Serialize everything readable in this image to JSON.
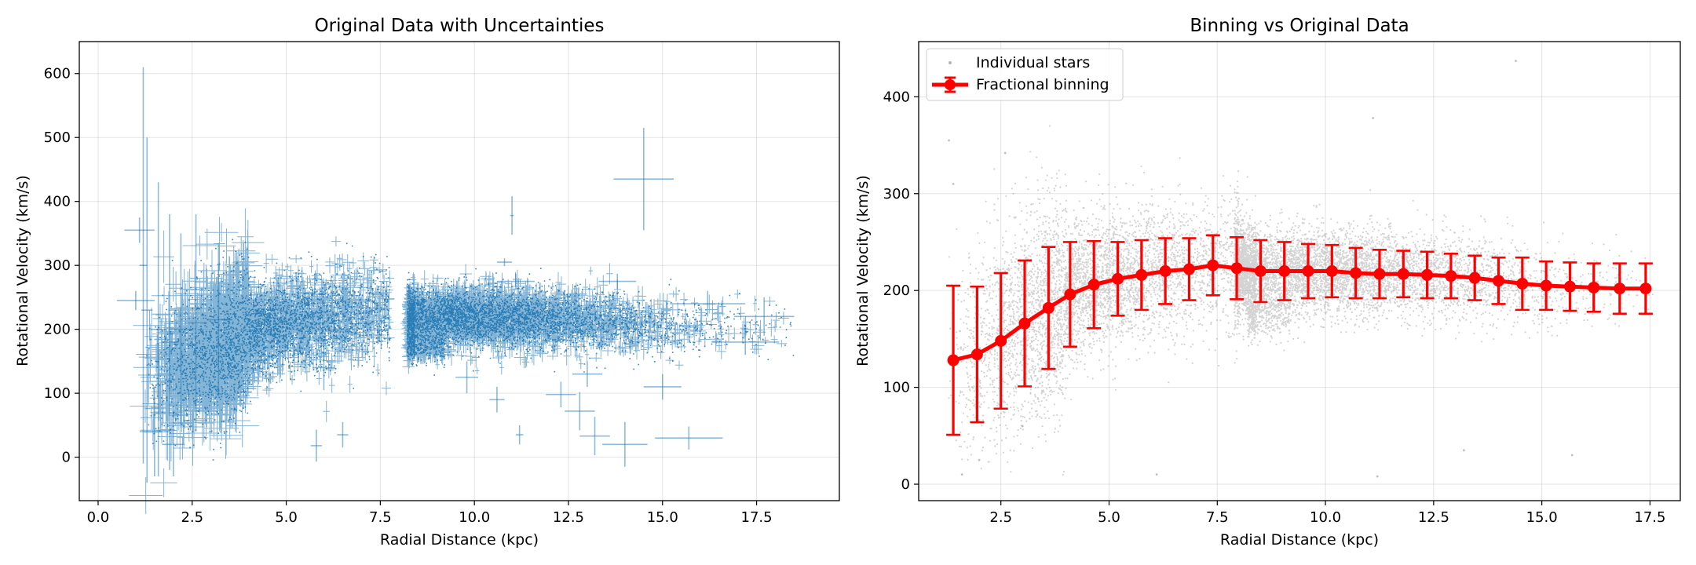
{
  "chart_data": [
    {
      "type": "scatter",
      "title": "Original Data with Uncertainties",
      "xlabel": "Radial Distance (kpc)",
      "ylabel": "Rotational Velocity (km/s)",
      "xlim": [
        -0.5,
        19.7
      ],
      "ylim": [
        -68,
        650
      ],
      "xticks": [
        0.0,
        2.5,
        5.0,
        7.5,
        10.0,
        12.5,
        15.0,
        17.5
      ],
      "xtick_labels": [
        "0.0",
        "2.5",
        "5.0",
        "7.5",
        "10.0",
        "12.5",
        "15.0",
        "17.5"
      ],
      "yticks": [
        0,
        100,
        200,
        300,
        400,
        500,
        600
      ],
      "ytick_labels": [
        "0",
        "100",
        "200",
        "300",
        "400",
        "500",
        "600"
      ],
      "grid": true,
      "color": "#1f77b4",
      "series": [
        {
          "style": "errorbar",
          "points": [
            {
              "x": 1.2,
              "y": 300,
              "xerr": 0.1,
              "yerr": 310
            },
            {
              "x": 1.3,
              "y": 230,
              "xerr": 0.15,
              "yerr": 270
            },
            {
              "x": 1.6,
              "y": 200,
              "xerr": 0.2,
              "yerr": 230
            },
            {
              "x": 1.9,
              "y": 180,
              "xerr": 0.2,
              "yerr": 200
            },
            {
              "x": 2.2,
              "y": 200,
              "xerr": 0.3,
              "yerr": 150
            },
            {
              "x": 2.6,
              "y": 210,
              "xerr": 0.3,
              "yerr": 170
            },
            {
              "x": 3.2,
              "y": 215,
              "xerr": 0.3,
              "yerr": 120
            },
            {
              "x": 1.1,
              "y": 355,
              "xerr": 0.4,
              "yerr": 20
            },
            {
              "x": 1.0,
              "y": 245,
              "xerr": 0.5,
              "yerr": 15
            },
            {
              "x": 1.5,
              "y": 40,
              "xerr": 0.4,
              "yerr": 70
            },
            {
              "x": 2.0,
              "y": 20,
              "xerr": 0.3,
              "yerr": 50
            },
            {
              "x": 11.0,
              "y": 378,
              "xerr": 0.05,
              "yerr": 30
            },
            {
              "x": 10.8,
              "y": 305,
              "xerr": 0.2,
              "yerr": 6
            },
            {
              "x": 14.5,
              "y": 435,
              "xerr": 0.8,
              "yerr": 80
            },
            {
              "x": 15.7,
              "y": 30,
              "xerr": 0.9,
              "yerr": 18
            },
            {
              "x": 14.0,
              "y": 20,
              "xerr": 0.6,
              "yerr": 35
            },
            {
              "x": 13.2,
              "y": 33,
              "xerr": 0.4,
              "yerr": 30
            },
            {
              "x": 12.8,
              "y": 72,
              "xerr": 0.4,
              "yerr": 30
            },
            {
              "x": 12.3,
              "y": 98,
              "xerr": 0.4,
              "yerr": 20
            },
            {
              "x": 11.2,
              "y": 35,
              "xerr": 0.1,
              "yerr": 15
            },
            {
              "x": 11.1,
              "y": 275,
              "xerr": 0.5,
              "yerr": 12
            },
            {
              "x": 13.8,
              "y": 275,
              "xerr": 0.5,
              "yerr": 12
            },
            {
              "x": 17.7,
              "y": 220,
              "xerr": 0.8,
              "yerr": 30
            },
            {
              "x": 17.2,
              "y": 180,
              "xerr": 0.9,
              "yerr": 20
            },
            {
              "x": 16.2,
              "y": 240,
              "xerr": 1.0,
              "yerr": 20
            },
            {
              "x": 5.8,
              "y": 18,
              "xerr": 0.15,
              "yerr": 25
            },
            {
              "x": 6.5,
              "y": 35,
              "xerr": 0.15,
              "yerr": 20
            },
            {
              "x": 6.0,
              "y": 140,
              "xerr": 0.3,
              "yerr": 35
            },
            {
              "x": 10.6,
              "y": 90,
              "xerr": 0.2,
              "yerr": 20
            },
            {
              "x": 9.8,
              "y": 125,
              "xerr": 0.3,
              "yerr": 25
            },
            {
              "x": 15.0,
              "y": 110,
              "xerr": 0.5,
              "yerr": 20
            },
            {
              "x": 13.0,
              "y": 130,
              "xerr": 0.4,
              "yerr": 20
            }
          ]
        }
      ]
    },
    {
      "type": "scatter",
      "title": "Binning vs Original Data",
      "xlabel": "Radial Distance (kpc)",
      "ylabel": "Rotational Velocity (km/s)",
      "xlim": [
        0.6,
        18.2
      ],
      "ylim": [
        -17,
        457
      ],
      "xticks": [
        2.5,
        5.0,
        7.5,
        10.0,
        12.5,
        15.0,
        17.5
      ],
      "xtick_labels": [
        "2.5",
        "5.0",
        "7.5",
        "10.0",
        "12.5",
        "15.0",
        "17.5"
      ],
      "yticks": [
        0,
        100,
        200,
        300,
        400
      ],
      "ytick_labels": [
        "0",
        "100",
        "200",
        "300",
        "400"
      ],
      "grid": true,
      "legend": {
        "position": "upper-left",
        "entries": [
          "Individual stars",
          "Fractional binning"
        ]
      },
      "series": [
        {
          "name": "Individual stars",
          "style": "points",
          "color": "#808080",
          "points": [
            {
              "x": 1.3,
              "y": 355
            },
            {
              "x": 1.4,
              "y": 310
            },
            {
              "x": 2.6,
              "y": 342
            },
            {
              "x": 14.4,
              "y": 437
            },
            {
              "x": 11.1,
              "y": 378
            },
            {
              "x": 1.6,
              "y": 10
            },
            {
              "x": 2.0,
              "y": 25
            },
            {
              "x": 15.7,
              "y": 30
            },
            {
              "x": 13.2,
              "y": 35
            },
            {
              "x": 6.1,
              "y": 10
            },
            {
              "x": 11.2,
              "y": 8
            },
            {
              "x": 3.0,
              "y": 60
            }
          ]
        },
        {
          "name": "Fractional binning",
          "style": "line-errorbar",
          "color": "#ff0000",
          "x": [
            1.4,
            1.95,
            2.5,
            3.05,
            3.6,
            4.1,
            4.65,
            5.2,
            5.75,
            6.3,
            6.85,
            7.4,
            7.95,
            8.5,
            9.05,
            9.6,
            10.15,
            10.7,
            11.25,
            11.8,
            12.35,
            12.9,
            13.45,
            14.0,
            14.55,
            15.1,
            15.65,
            16.2,
            16.8,
            17.4
          ],
          "y": [
            128,
            134,
            148,
            166,
            182,
            196,
            206,
            212,
            216,
            220,
            222,
            226,
            223,
            220,
            220,
            220,
            220,
            218,
            217,
            217,
            216,
            215,
            213,
            210,
            207,
            205,
            204,
            203,
            202,
            202
          ],
          "yerr": [
            77,
            70,
            70,
            65,
            63,
            54,
            45,
            38,
            36,
            34,
            32,
            31,
            32,
            32,
            30,
            28,
            27,
            26,
            25,
            24,
            24,
            23,
            23,
            24,
            27,
            25,
            25,
            25,
            26,
            26
          ]
        }
      ]
    }
  ]
}
